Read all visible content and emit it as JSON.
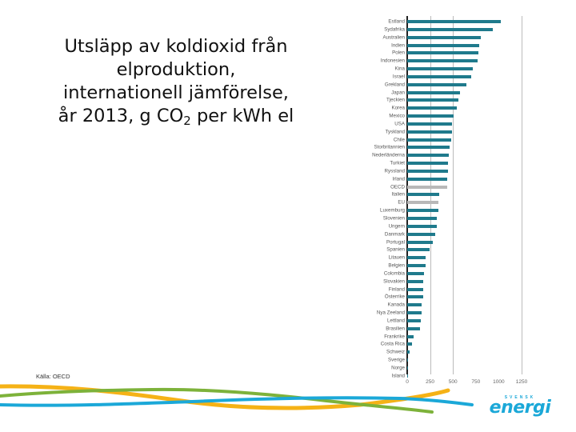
{
  "slide": {
    "title_line1": "Utsläpp av koldioxid från",
    "title_line2": "elproduktion,",
    "title_line3": "internationell jämförelse,",
    "title_line4_pre": "år 2013, g CO",
    "title_line4_sub": "2",
    "title_line4_post": " per kWh el",
    "source": "Källa: OECD",
    "logo_top": "SVENSK",
    "logo_main": "energi"
  },
  "colors": {
    "bar": "#1f7a8c",
    "bar_aggregate": "#b8b8b8",
    "swoosh_yellow": "#f5b216",
    "swoosh_green": "#7db23a",
    "swoosh_blue": "#1ba8d8",
    "logo": "#1ba8d8"
  },
  "chart_data": {
    "type": "bar",
    "orientation": "horizontal",
    "title": "Utsläpp av koldioxid från elproduktion, internationell jämförelse, år 2013, g CO2 per kWh el",
    "xlabel": "",
    "ylabel": "",
    "xlim": [
      0,
      1250
    ],
    "xticks": [
      0,
      250,
      500,
      750,
      1000,
      1250
    ],
    "gridlines_at": [
      250,
      500,
      1250
    ],
    "categories": [
      "Estland",
      "Sydafrika",
      "Australien",
      "Indien",
      "Polen",
      "Indonesien",
      "Kina",
      "Israel",
      "Grekland",
      "Japan",
      "Tjeckien",
      "Korea",
      "Mexico",
      "USA",
      "Tyskland",
      "Chile",
      "Storbritannien",
      "Nederländerna",
      "Turkiet",
      "Ryssland",
      "Irland",
      "OECD",
      "Italien",
      "EU",
      "Luxemburg",
      "Slovenien",
      "Ungern",
      "Danmark",
      "Portugal",
      "Spanien",
      "Litauen",
      "Belgien",
      "Colombia",
      "Slovakien",
      "Finland",
      "Österrike",
      "Kanada",
      "Nya Zeeland",
      "Lettland",
      "Brasilien",
      "Frankrike",
      "Costa Rica",
      "Schweiz",
      "Sverige",
      "Norge",
      "Island"
    ],
    "values": [
      1020,
      935,
      800,
      790,
      775,
      765,
      715,
      700,
      650,
      575,
      560,
      545,
      510,
      490,
      490,
      480,
      465,
      455,
      445,
      445,
      440,
      440,
      350,
      345,
      345,
      325,
      325,
      305,
      280,
      245,
      200,
      200,
      185,
      175,
      175,
      175,
      160,
      160,
      145,
      140,
      70,
      55,
      25,
      10,
      5,
      2
    ],
    "highlighted_aggregates": [
      "OECD",
      "EU"
    ],
    "source": "Källa: OECD"
  }
}
